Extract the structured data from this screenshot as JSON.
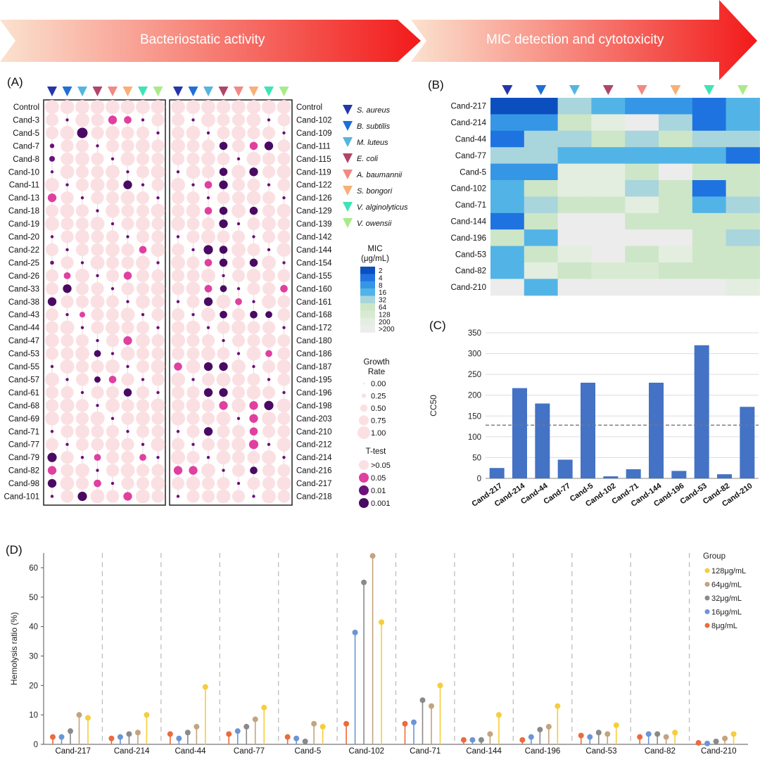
{
  "banners": {
    "left": "Bacteriostatic activity",
    "right": "MIC detection and cytotoxicity"
  },
  "panels": {
    "a": "(A)",
    "b": "(B)",
    "c": "(C)",
    "d": "(D)"
  },
  "colors": {
    "s_aureus": "#2635a8",
    "b_subtilis": "#1f6fd6",
    "m_luteus": "#56b5e0",
    "e_coli": "#b0456a",
    "a_baumannii": "#f08a84",
    "s_bongori": "#f6b078",
    "v_alginolyticus": "#3ee4b4",
    "v_owensii": "#a9ea88",
    "bar": "#4472c4",
    "gray_dash": "#777777"
  },
  "legend_species": [
    {
      "name": "S. aureus",
      "color": "#2635a8"
    },
    {
      "name": "B. subtilis",
      "color": "#1f6fd6"
    },
    {
      "name": "M. luteus",
      "color": "#56b5e0"
    },
    {
      "name": "E. coli",
      "color": "#b0456a"
    },
    {
      "name": "A. baumannii",
      "color": "#f08a84"
    },
    {
      "name": "S. bongori",
      "color": "#f6b078"
    },
    {
      "name": "V. alginolyticus",
      "color": "#3ee4b4"
    },
    {
      "name": "V. owensii",
      "color": "#a9ea88"
    }
  ],
  "mic_legend": {
    "title": "MIC",
    "unit": "(μg/mL)",
    "levels": [
      "2",
      "4",
      "8",
      "16",
      "32",
      "64",
      "128",
      "200",
      ">200"
    ],
    "colors": [
      "#0b4fbf",
      "#1f73e0",
      "#3596e6",
      "#52b4e6",
      "#a9d5dd",
      "#cde6c8",
      "#d8ebd2",
      "#e3eee0",
      "#ececec"
    ]
  },
  "growth_legend": {
    "title": "Growth",
    "title2": "Rate",
    "levels": [
      "0.00",
      "0.25",
      "0.50",
      "0.75",
      "1.00"
    ]
  },
  "ttest_legend": {
    "title": "T-test",
    "levels": [
      ">0.05",
      "0.05",
      "0.01",
      "0.001"
    ],
    "colors": [
      "#fbe0e3",
      "#e040a0",
      "#6b1179",
      "#4a0a63"
    ]
  },
  "chart_data": [
    {
      "type": "dot-matrix",
      "title": "Bacteriostatic activity",
      "columns": [
        "S. aureus",
        "B. subtilis",
        "M. luteus",
        "E. coli",
        "A. baumannii",
        "S. bongori",
        "V. alginolyticus",
        "V. owensii"
      ],
      "left_rows": [
        "Control",
        "Cand-3",
        "Cand-5",
        "Cand-7",
        "Cand-8",
        "Cand-10",
        "Cand-11",
        "Cand-13",
        "Cand-18",
        "Cand-19",
        "Cand-20",
        "Cand-22",
        "Cand-25",
        "Cand-26",
        "Cand-33",
        "Cand-38",
        "Cand-43",
        "Cand-44",
        "Cand-47",
        "Cand-53",
        "Cand-55",
        "Cand-57",
        "Cand-61",
        "Cand-68",
        "Cand-69",
        "Cand-71",
        "Cand-77",
        "Cand-79",
        "Cand-82",
        "Cand-98",
        "Cand-101"
      ],
      "right_rows": [
        "Control",
        "Cand-102",
        "Cand-109",
        "Cand-111",
        "Cand-115",
        "Cand-119",
        "Cand-122",
        "Cand-126",
        "Cand-129",
        "Cand-139",
        "Cand-142",
        "Cand-144",
        "Cand-154",
        "Cand-155",
        "Cand-160",
        "Cand-161",
        "Cand-168",
        "Cand-172",
        "Cand-180",
        "Cand-186",
        "Cand-187",
        "Cand-195",
        "Cand-196",
        "Cand-198",
        "Cand-203",
        "Cand-210",
        "Cand-212",
        "Cand-214",
        "Cand-216",
        "Cand-217",
        "Cand-218"
      ],
      "size_scale": "Growth Rate 0-1",
      "significant_left": [
        [
          1,
          4,
          0.55,
          1
        ],
        [
          1,
          5,
          0.45,
          1
        ],
        [
          2,
          2,
          0.7,
          3
        ],
        [
          3,
          0,
          0.2,
          2
        ],
        [
          4,
          0,
          0.3,
          2
        ],
        [
          6,
          5,
          0.55,
          3
        ],
        [
          7,
          0,
          0.55,
          1
        ],
        [
          11,
          6,
          0.45,
          1
        ],
        [
          12,
          0,
          0.15,
          2
        ],
        [
          13,
          1,
          0.4,
          1
        ],
        [
          13,
          5,
          0.5,
          1
        ],
        [
          14,
          1,
          0.55,
          3
        ],
        [
          15,
          0,
          0.55,
          3
        ],
        [
          16,
          2,
          0.3,
          1
        ],
        [
          18,
          5,
          0.55,
          1
        ],
        [
          19,
          3,
          0.4,
          3
        ],
        [
          21,
          3,
          0.35,
          3
        ],
        [
          21,
          4,
          0.45,
          1
        ],
        [
          22,
          5,
          0.5,
          3
        ],
        [
          27,
          0,
          0.6,
          3
        ],
        [
          27,
          3,
          0.4,
          1
        ],
        [
          27,
          6,
          0.4,
          1
        ],
        [
          28,
          0,
          0.55,
          1
        ],
        [
          29,
          0,
          0.55,
          3
        ],
        [
          29,
          3,
          0.45,
          1
        ],
        [
          30,
          2,
          0.6,
          3
        ],
        [
          30,
          5,
          0.55,
          1
        ]
      ],
      "significant_right": [
        [
          3,
          3,
          0.5,
          3
        ],
        [
          3,
          5,
          0.5,
          1
        ],
        [
          3,
          6,
          0.55,
          3
        ],
        [
          5,
          3,
          0.5,
          3
        ],
        [
          5,
          5,
          0.55,
          3
        ],
        [
          6,
          2,
          0.45,
          1
        ],
        [
          6,
          3,
          0.55,
          3
        ],
        [
          8,
          2,
          0.45,
          1
        ],
        [
          8,
          3,
          0.5,
          3
        ],
        [
          8,
          5,
          0.5,
          3
        ],
        [
          9,
          3,
          0.55,
          3
        ],
        [
          11,
          2,
          0.6,
          3
        ],
        [
          11,
          3,
          0.5,
          3
        ],
        [
          12,
          2,
          0.45,
          1
        ],
        [
          12,
          3,
          0.5,
          3
        ],
        [
          12,
          5,
          0.5,
          3
        ],
        [
          14,
          2,
          0.45,
          1
        ],
        [
          14,
          3,
          0.4,
          3
        ],
        [
          14,
          7,
          0.45,
          1
        ],
        [
          15,
          2,
          0.55,
          3
        ],
        [
          15,
          4,
          0.4,
          1
        ],
        [
          16,
          3,
          0.45,
          3
        ],
        [
          16,
          5,
          0.45,
          3
        ],
        [
          16,
          6,
          0.4,
          3
        ],
        [
          19,
          6,
          0.4,
          1
        ],
        [
          20,
          0,
          0.5,
          1
        ],
        [
          20,
          2,
          0.55,
          3
        ],
        [
          20,
          3,
          0.55,
          3
        ],
        [
          22,
          2,
          0.55,
          3
        ],
        [
          22,
          3,
          0.55,
          3
        ],
        [
          23,
          3,
          0.55,
          1
        ],
        [
          23,
          5,
          0.55,
          1
        ],
        [
          23,
          6,
          0.6,
          3
        ],
        [
          24,
          5,
          0.55,
          1
        ],
        [
          25,
          2,
          0.55,
          3
        ],
        [
          25,
          5,
          0.5,
          1
        ],
        [
          26,
          5,
          0.6,
          1
        ],
        [
          28,
          0,
          0.55,
          1
        ],
        [
          28,
          1,
          0.55,
          1
        ],
        [
          28,
          5,
          0.45,
          3
        ]
      ]
    },
    {
      "type": "heatmap",
      "rows": [
        "Cand-217",
        "Cand-214",
        "Cand-44",
        "Cand-77",
        "Cand-5",
        "Cand-102",
        "Cand-71",
        "Cand-144",
        "Cand-196",
        "Cand-53",
        "Cand-82",
        "Cand-210"
      ],
      "columns": [
        "S. aureus",
        "B. subtilis",
        "M. luteus",
        "E. coli",
        "A. baumannii",
        "S. bongori",
        "V. alginolyticus",
        "V. owensii"
      ],
      "values": [
        [
          "2",
          "2",
          "32",
          "16",
          "8",
          "8",
          "4",
          "16"
        ],
        [
          "8",
          "8",
          "64",
          "200",
          ">200",
          "32",
          "4",
          "16"
        ],
        [
          "4",
          "32",
          "32",
          "64",
          "32",
          "64",
          "32",
          "32"
        ],
        [
          "32",
          "32",
          "16",
          "16",
          "16",
          "16",
          "16",
          "4"
        ],
        [
          "8",
          "8",
          "200",
          "200",
          "64",
          ">200",
          "64",
          "64"
        ],
        [
          "16",
          "64",
          "200",
          "200",
          "32",
          "64",
          "4",
          "64"
        ],
        [
          "16",
          "32",
          "64",
          "64",
          "200",
          "64",
          "16",
          "32"
        ],
        [
          "4",
          "64",
          ">200",
          ">200",
          "64",
          "64",
          "64",
          "64"
        ],
        [
          "64",
          "16",
          ">200",
          ">200",
          ">200",
          ">200",
          "64",
          "32"
        ],
        [
          "16",
          "64",
          "200",
          ">200",
          "64",
          "200",
          "64",
          "64"
        ],
        [
          "16",
          "200",
          "64",
          "128",
          "128",
          "64",
          "64",
          "64"
        ],
        [
          ">200",
          "16",
          ">200",
          ">200",
          ">200",
          ">200",
          ">200",
          "200"
        ]
      ]
    },
    {
      "type": "bar",
      "categories": [
        "Cand-217",
        "Cand-214",
        "Cand-44",
        "Cand-77",
        "Cand-5",
        "Cand-102",
        "Cand-71",
        "Cand-144",
        "Cand-196",
        "Cand-53",
        "Cand-82",
        "Cand-210"
      ],
      "values": [
        25,
        217,
        180,
        45,
        230,
        5,
        22,
        230,
        18,
        320,
        10,
        172
      ],
      "ylabel": "CC50",
      "ylim": [
        0,
        350
      ],
      "yticks": [
        "0",
        "50",
        "100",
        "150",
        "200",
        "250",
        "300",
        "350"
      ],
      "reference_line": 128
    },
    {
      "type": "lollipop",
      "categories": [
        "Cand-217",
        "Cand-214",
        "Cand-44",
        "Cand-77",
        "Cand-5",
        "Cand-102",
        "Cand-71",
        "Cand-144",
        "Cand-196",
        "Cand-53",
        "Cand-82",
        "Cand-210"
      ],
      "ylabel": "Hemolysis ratio (%)",
      "ylim": [
        0,
        65
      ],
      "yticks": [
        "0",
        "10",
        "20",
        "30",
        "40",
        "50",
        "60"
      ],
      "legend_title": "Group",
      "series": [
        {
          "name": "8μg/mL",
          "color": "#ec6a3c",
          "values": [
            2.5,
            2,
            3.5,
            3.5,
            2.5,
            7,
            7,
            1.5,
            1.5,
            3,
            2.5,
            0.5
          ]
        },
        {
          "name": "16μg/mL",
          "color": "#6b95d4",
          "values": [
            2.5,
            2.5,
            2,
            4.5,
            2,
            38,
            7.5,
            1.5,
            2.5,
            2.5,
            3.5,
            0.3
          ]
        },
        {
          "name": "32μg/mL",
          "color": "#8a8a8a",
          "values": [
            4.5,
            3.5,
            4,
            6,
            1,
            55,
            15,
            1.5,
            5,
            4,
            3.5,
            1
          ]
        },
        {
          "name": "64μg/mL",
          "color": "#c3a47e",
          "values": [
            10,
            4,
            6,
            8.5,
            7,
            64,
            13,
            3.5,
            6,
            3.5,
            2.5,
            2
          ]
        },
        {
          "name": "128μg/mL",
          "color": "#f6cd3b",
          "values": [
            9,
            10,
            19.5,
            12.5,
            6,
            41.5,
            20,
            10,
            13,
            6.5,
            4,
            3.5
          ]
        }
      ]
    }
  ]
}
